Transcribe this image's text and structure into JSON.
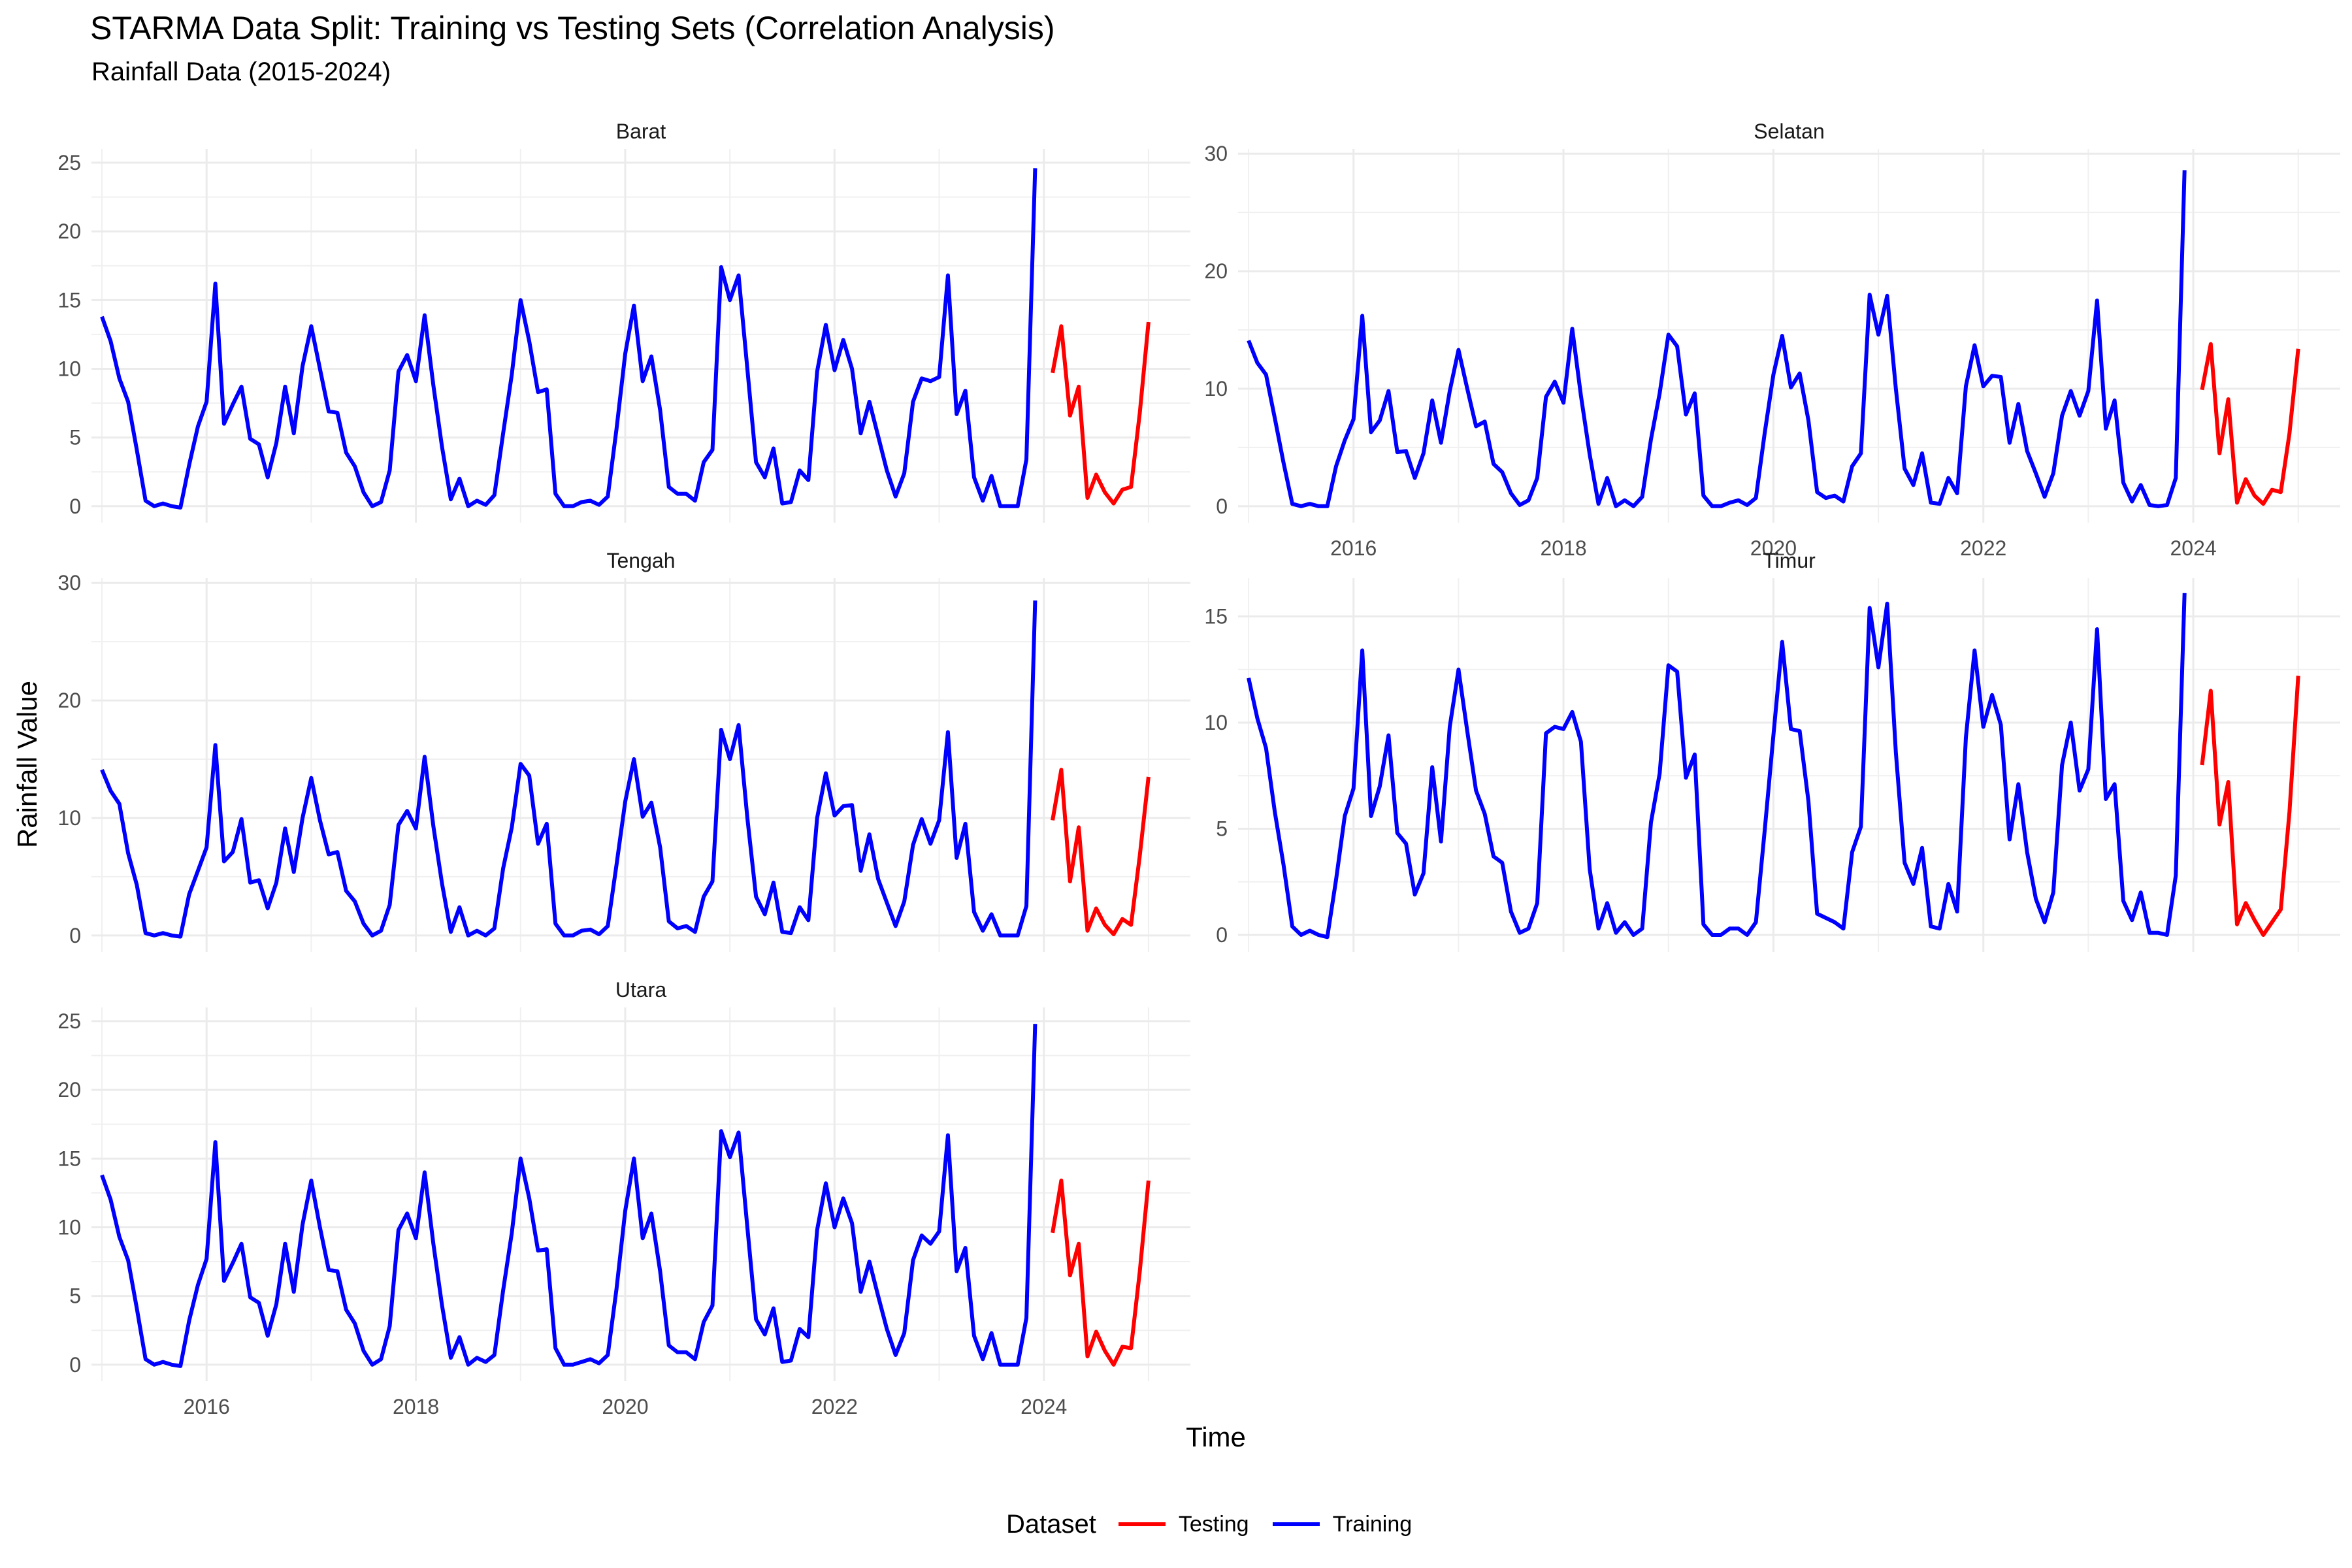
{
  "chart_data": {
    "type": "line",
    "title": "STARMA Data Split: Training vs Testing Sets (Correlation Analysis)",
    "subtitle": "Rainfall Data (2015-2024)",
    "xlabel": "Time",
    "ylabel": "Rainfall Value",
    "x_ticks": [
      "2016",
      "2018",
      "2020",
      "2022",
      "2024"
    ],
    "xlim": [
      2014.9,
      2025.4
    ],
    "grid": true,
    "legend": {
      "title": "Dataset",
      "position": "bottom",
      "entries": [
        {
          "name": "Testing",
          "color": "#ff0000"
        },
        {
          "name": "Training",
          "color": "#0000ff"
        }
      ]
    },
    "colors": {
      "Training": "#0000ff",
      "Testing": "#ff0000"
    },
    "panels": [
      {
        "name": "Barat",
        "ylim": [
          -1.2,
          26
        ],
        "y_ticks": [
          0,
          5,
          10,
          15,
          20,
          25
        ],
        "training": {
          "start": "2015-01",
          "values": [
            13.8,
            12.0,
            9.3,
            7.6,
            4.1,
            0.4,
            0.0,
            0.2,
            0.0,
            -0.1,
            3.0,
            5.8,
            7.6,
            16.2,
            6.0,
            7.4,
            8.7,
            4.9,
            4.5,
            2.1,
            4.6,
            8.7,
            5.3,
            10.2,
            13.1,
            10.0,
            6.9,
            6.8,
            3.9,
            2.9,
            1.0,
            0.0,
            0.3,
            2.6,
            9.8,
            11.0,
            9.1,
            13.9,
            8.8,
            4.3,
            0.5,
            2.0,
            0.0,
            0.4,
            0.1,
            0.8,
            5.3,
            9.6,
            15.0,
            12.0,
            8.3,
            8.5,
            0.9,
            0.0,
            0.0,
            0.3,
            0.4,
            0.1,
            0.7,
            5.6,
            11.1,
            14.6,
            9.1,
            10.9,
            7.0,
            1.4,
            0.9,
            0.9,
            0.4,
            3.2,
            4.1,
            17.4,
            15.0,
            16.8,
            10.0,
            3.2,
            2.1,
            4.2,
            0.2,
            0.3,
            2.6,
            1.9,
            9.8,
            13.2,
            9.9,
            12.1,
            10.0,
            5.3,
            7.6,
            5.1,
            2.6,
            0.7,
            2.4,
            7.6,
            9.3,
            9.1,
            9.4,
            16.8,
            6.7,
            8.4,
            2.1,
            0.4,
            2.2,
            0.0,
            0.0,
            0.0,
            3.4,
            24.6
          ]
        },
        "testing": {
          "start": "2024-02",
          "values": [
            9.7,
            13.1,
            6.6,
            8.7,
            0.6,
            2.3,
            1.0,
            0.2,
            1.2,
            1.4,
            6.8,
            13.4
          ]
        }
      },
      {
        "name": "Selatan",
        "ylim": [
          -1.4,
          30.4
        ],
        "y_ticks": [
          0,
          10,
          20,
          30
        ],
        "training": {
          "start": "2015-01",
          "values": [
            14.1,
            12.2,
            11.2,
            7.5,
            3.7,
            0.2,
            0.0,
            0.2,
            0.0,
            0.0,
            3.4,
            5.6,
            7.4,
            16.2,
            6.3,
            7.3,
            9.8,
            4.6,
            4.7,
            2.4,
            4.5,
            9.0,
            5.4,
            9.8,
            13.3,
            10.0,
            6.8,
            7.2,
            3.6,
            2.9,
            1.1,
            0.1,
            0.5,
            2.4,
            9.3,
            10.6,
            8.8,
            15.1,
            9.4,
            4.4,
            0.2,
            2.4,
            0.0,
            0.5,
            0.0,
            0.8,
            5.7,
            9.6,
            14.6,
            13.6,
            7.8,
            9.6,
            0.9,
            0.0,
            0.0,
            0.3,
            0.5,
            0.1,
            0.7,
            6.2,
            11.2,
            14.5,
            10.1,
            11.3,
            7.3,
            1.2,
            0.7,
            0.9,
            0.4,
            3.4,
            4.5,
            18.0,
            14.6,
            17.9,
            10.0,
            3.2,
            1.8,
            4.5,
            0.3,
            0.2,
            2.4,
            1.1,
            10.2,
            13.7,
            10.2,
            11.1,
            11.0,
            5.4,
            8.7,
            4.7,
            2.8,
            0.8,
            2.8,
            7.7,
            9.8,
            7.7,
            9.8,
            17.5,
            6.6,
            9.0,
            2.0,
            0.4,
            1.8,
            0.1,
            0.0,
            0.1,
            2.4,
            28.6
          ]
        },
        "testing": {
          "start": "2024-02",
          "values": [
            9.9,
            13.8,
            4.5,
            9.1,
            0.3,
            2.3,
            0.9,
            0.2,
            1.4,
            1.2,
            6.2,
            13.4
          ]
        }
      },
      {
        "name": "Tengah",
        "ylim": [
          -1.4,
          30.4
        ],
        "y_ticks": [
          0,
          10,
          20,
          30
        ],
        "training": {
          "start": "2015-01",
          "values": [
            14.1,
            12.3,
            11.2,
            7.0,
            4.3,
            0.2,
            0.0,
            0.2,
            0.0,
            -0.1,
            3.5,
            5.5,
            7.5,
            16.2,
            6.3,
            7.1,
            9.9,
            4.5,
            4.7,
            2.3,
            4.5,
            9.1,
            5.4,
            10.0,
            13.4,
            9.8,
            6.9,
            7.1,
            3.8,
            2.9,
            1.0,
            0.0,
            0.4,
            2.6,
            9.4,
            10.6,
            9.1,
            15.2,
            9.3,
            4.4,
            0.3,
            2.4,
            0.0,
            0.4,
            0.0,
            0.6,
            5.7,
            9.2,
            14.6,
            13.6,
            7.8,
            9.5,
            1.0,
            0.0,
            0.0,
            0.4,
            0.5,
            0.1,
            0.8,
            6.0,
            11.4,
            15.0,
            10.1,
            11.3,
            7.5,
            1.2,
            0.6,
            0.8,
            0.3,
            3.3,
            4.6,
            17.5,
            15.0,
            17.9,
            10.0,
            3.3,
            1.8,
            4.5,
            0.3,
            0.2,
            2.4,
            1.3,
            10.0,
            13.8,
            10.2,
            11.0,
            11.1,
            5.5,
            8.6,
            4.8,
            2.8,
            0.8,
            2.9,
            7.7,
            9.9,
            7.8,
            9.8,
            17.3,
            6.6,
            9.5,
            2.0,
            0.4,
            1.8,
            0.0,
            0.0,
            0.0,
            2.5,
            28.5
          ]
        },
        "testing": {
          "start": "2024-02",
          "values": [
            9.8,
            14.1,
            4.6,
            9.2,
            0.4,
            2.3,
            0.9,
            0.1,
            1.4,
            0.9,
            6.8,
            13.5
          ]
        }
      },
      {
        "name": "Timur",
        "ylim": [
          -0.8,
          16.8
        ],
        "y_ticks": [
          0,
          5,
          10,
          15
        ],
        "training": {
          "start": "2015-01",
          "values": [
            12.1,
            10.2,
            8.8,
            5.8,
            3.3,
            0.4,
            0.0,
            0.2,
            0.0,
            -0.1,
            2.6,
            5.6,
            6.9,
            13.4,
            5.6,
            7.0,
            9.4,
            4.8,
            4.3,
            1.9,
            2.9,
            7.9,
            4.4,
            9.8,
            12.5,
            9.6,
            6.8,
            5.7,
            3.7,
            3.4,
            1.1,
            0.1,
            0.3,
            1.5,
            9.5,
            9.8,
            9.7,
            10.5,
            9.1,
            3.1,
            0.3,
            1.5,
            0.1,
            0.6,
            0.0,
            0.3,
            5.3,
            7.6,
            12.7,
            12.4,
            7.4,
            8.5,
            0.5,
            0.0,
            0.0,
            0.3,
            0.3,
            0.0,
            0.6,
            4.9,
            9.4,
            13.8,
            9.7,
            9.6,
            6.3,
            1.0,
            0.8,
            0.6,
            0.3,
            3.9,
            5.1,
            15.4,
            12.6,
            15.6,
            8.6,
            3.4,
            2.4,
            4.1,
            0.4,
            0.3,
            2.4,
            1.1,
            9.3,
            13.4,
            9.8,
            11.3,
            9.9,
            4.5,
            7.1,
            3.9,
            1.7,
            0.6,
            2.0,
            8.0,
            10.0,
            6.8,
            7.8,
            14.4,
            6.4,
            7.1,
            1.6,
            0.7,
            2.0,
            0.1,
            0.1,
            0.0,
            2.8,
            16.1
          ]
        },
        "testing": {
          "start": "2024-02",
          "values": [
            8.0,
            11.5,
            5.2,
            7.2,
            0.5,
            1.5,
            0.7,
            0.0,
            0.6,
            1.2,
            5.8,
            12.2
          ]
        }
      },
      {
        "name": "Utara",
        "ylim": [
          -1.2,
          26
        ],
        "y_ticks": [
          0,
          5,
          10,
          15,
          20,
          25
        ],
        "training": {
          "start": "2015-01",
          "values": [
            13.8,
            12.0,
            9.3,
            7.6,
            4.1,
            0.4,
            0.0,
            0.2,
            0.0,
            -0.1,
            3.2,
            5.8,
            7.7,
            16.2,
            6.1,
            7.4,
            8.8,
            4.9,
            4.5,
            2.1,
            4.4,
            8.8,
            5.3,
            10.2,
            13.4,
            10.0,
            6.9,
            6.8,
            4.0,
            3.0,
            1.0,
            0.0,
            0.4,
            2.8,
            9.8,
            11.0,
            9.2,
            14.0,
            8.8,
            4.3,
            0.5,
            2.0,
            0.0,
            0.5,
            0.2,
            0.7,
            5.4,
            9.6,
            15.0,
            12.1,
            8.3,
            8.4,
            1.2,
            0.0,
            0.0,
            0.2,
            0.4,
            0.1,
            0.7,
            5.5,
            11.2,
            15.0,
            9.2,
            11.0,
            6.8,
            1.4,
            0.9,
            0.9,
            0.4,
            3.1,
            4.3,
            17.0,
            15.1,
            16.9,
            10.0,
            3.3,
            2.2,
            4.1,
            0.2,
            0.3,
            2.6,
            2.0,
            9.8,
            13.2,
            10.0,
            12.1,
            10.3,
            5.3,
            7.5,
            5.0,
            2.6,
            0.7,
            2.3,
            7.6,
            9.4,
            8.8,
            9.7,
            16.7,
            6.8,
            8.5,
            2.1,
            0.4,
            2.3,
            0.0,
            0.0,
            0.0,
            3.4,
            24.8
          ]
        },
        "testing": {
          "start": "2024-02",
          "values": [
            9.6,
            13.4,
            6.5,
            8.8,
            0.6,
            2.4,
            1.0,
            0.0,
            1.3,
            1.2,
            6.8,
            13.4
          ]
        }
      }
    ]
  }
}
